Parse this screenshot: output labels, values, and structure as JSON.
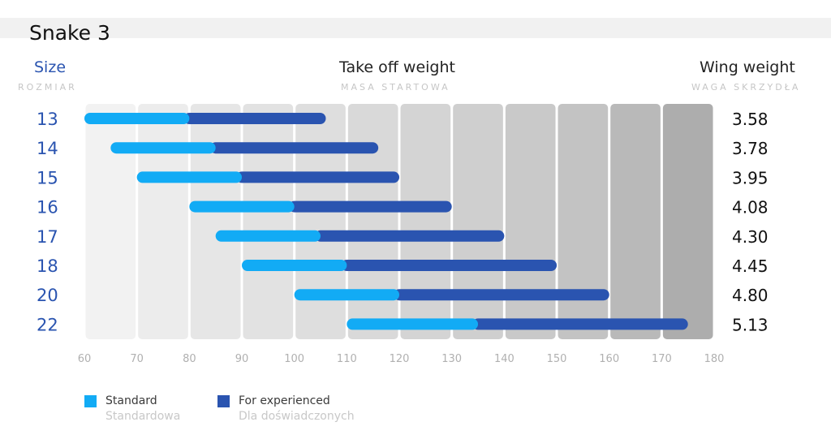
{
  "title": "Snake 3",
  "headers": {
    "size": "Size",
    "size_sub": "ROZMIAR",
    "takeoff": "Take off weight",
    "takeoff_sub": "MASA STARTOWA",
    "wing": "Wing weight",
    "wing_sub": "WAGA SKRZYDŁA"
  },
  "colors": {
    "standard": "#12abf5",
    "experienced": "#2a54b0",
    "size_label": "#2a54b0",
    "column_shades": [
      "#f2f2f2",
      "#ececec",
      "#e6e6e6",
      "#e2e2e2",
      "#dedede",
      "#d9d9d9",
      "#d4d4d4",
      "#cfcfcf",
      "#c9c9c9",
      "#c3c3c3",
      "#b9b9b9",
      "#adadad"
    ]
  },
  "legend": {
    "standard": "Standard",
    "standard_sub": "Standardowa",
    "experienced": "For experienced",
    "experienced_sub": "Dla doświadczonych"
  },
  "chart_data": {
    "type": "bar",
    "orientation": "horizontal-range",
    "xlim": [
      60,
      180
    ],
    "x_ticks": [
      60,
      70,
      80,
      90,
      100,
      110,
      120,
      130,
      140,
      150,
      160,
      170,
      180
    ],
    "categories": [
      "13",
      "14",
      "15",
      "16",
      "17",
      "18",
      "20",
      "22"
    ],
    "series": [
      {
        "name": "Standard",
        "ranges": [
          [
            60,
            80
          ],
          [
            65,
            85
          ],
          [
            70,
            90
          ],
          [
            80,
            100
          ],
          [
            85,
            105
          ],
          [
            90,
            110
          ],
          [
            100,
            120
          ],
          [
            110,
            135
          ]
        ]
      },
      {
        "name": "For experienced",
        "ranges": [
          [
            80,
            106
          ],
          [
            85,
            116
          ],
          [
            90,
            120
          ],
          [
            100,
            130
          ],
          [
            105,
            140
          ],
          [
            110,
            150
          ],
          [
            120,
            160
          ],
          [
            135,
            175
          ]
        ]
      }
    ],
    "wing_weight": [
      "3.58",
      "3.78",
      "3.95",
      "4.08",
      "4.30",
      "4.45",
      "4.80",
      "5.13"
    ],
    "legend_position": "bottom-left",
    "grid": false
  }
}
